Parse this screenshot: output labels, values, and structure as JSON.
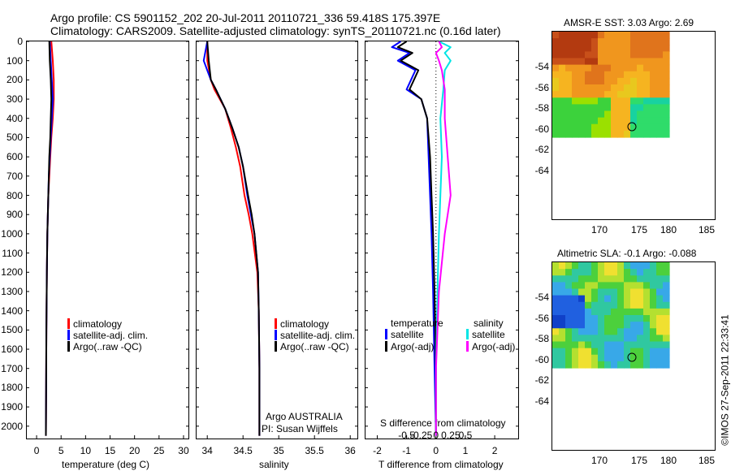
{
  "header": {
    "line1": "Argo profile: CS 5901152_202 20-Jul-2011 20110721_336 59.418S 175.397E",
    "line2": "Climatology: CARS2009. Satellite-adjusted climatology: synTS_20110721.nc (0.16d later)"
  },
  "credit": "©IMOS 27-Sep-2011 22:33:41",
  "colors": {
    "clim": "#ff0000",
    "sat": "#0000ff",
    "argo": "#000000",
    "sat_s": "#00e5e5",
    "argo_s": "#ff00ff"
  },
  "depth_ticks": [
    "0",
    "100",
    "200",
    "300",
    "400",
    "500",
    "600",
    "700",
    "800",
    "900",
    "1000",
    "1100",
    "1200",
    "1300",
    "1400",
    "1500",
    "1600",
    "1700",
    "1800",
    "1900",
    "2000"
  ],
  "panel_temp": {
    "xlabel": "temperature (deg C)",
    "xticks": [
      "0",
      "5",
      "10",
      "15",
      "20",
      "25",
      "30"
    ],
    "legend": [
      "climatology",
      "satellite-adj. clim.",
      "Argo(..raw -QC)"
    ]
  },
  "panel_sal": {
    "xlabel": "salinity",
    "xticks": [
      "34",
      "34.5",
      "35",
      "35.5",
      "36"
    ],
    "legend": [
      "climatology",
      "satellite-adj. clim.",
      "Argo(..raw -QC)"
    ],
    "note1": "Argo AUSTRALIA",
    "note2": "PI: Susan Wijffels"
  },
  "panel_diff": {
    "xlabel": "T difference from climatology",
    "xticks": [
      "-2",
      "-1",
      "0",
      "1",
      "2"
    ],
    "top_label": "S difference from climatology",
    "top_ticks": [
      "-0.5",
      "-0.25",
      "0",
      "0.25",
      "0.5"
    ],
    "legend_t_title": "temperature",
    "legend_s_title": "salinity",
    "legend_t": [
      "satellite",
      "Argo(-adj)"
    ],
    "legend_s": [
      "satellite",
      "Argo(-adj)"
    ]
  },
  "map_sst": {
    "title": "AMSR-E SST: 3.03 Argo: 2.69",
    "yticks": [
      "-54",
      "-56",
      "-58",
      "-60",
      "-62",
      "-64"
    ],
    "xticks": [
      "170",
      "175",
      "180",
      "185"
    ]
  },
  "map_sla": {
    "title": "Altimetric SLA: -0.1 Argo: -0.088",
    "yticks": [
      "-54",
      "-56",
      "-58",
      "-60",
      "-62",
      "-64"
    ],
    "xticks": [
      "170",
      "175",
      "180",
      "185"
    ]
  },
  "chart_data": [
    {
      "type": "line",
      "xlabel": "temperature (deg C)",
      "ylabel": "",
      "xlim": [
        -2,
        31
      ],
      "ylim": [
        2060,
        0
      ],
      "series": [
        {
          "name": "climatology",
          "x": [
            3.0,
            3.3,
            3.5,
            3.5,
            3.3,
            3.0,
            2.8,
            2.6,
            2.4,
            2.3,
            2.2,
            2.1,
            2.0,
            1.95,
            1.9
          ],
          "y": [
            0,
            100,
            200,
            300,
            400,
            500,
            600,
            700,
            800,
            900,
            1000,
            1200,
            1500,
            1800,
            2050
          ]
        },
        {
          "name": "satellite-adj. clim.",
          "x": [
            2.7,
            2.9,
            3.1,
            3.3,
            3.1,
            2.9,
            2.7,
            2.5,
            2.4,
            2.3,
            2.2,
            2.1,
            2.0,
            1.95,
            1.9
          ],
          "y": [
            0,
            100,
            200,
            300,
            400,
            500,
            600,
            700,
            800,
            900,
            1000,
            1200,
            1500,
            1800,
            2050
          ]
        },
        {
          "name": "Argo(..raw -QC)",
          "x": [
            2.6,
            2.7,
            2.9,
            3.0,
            2.9,
            2.8,
            2.6,
            2.5,
            2.4,
            2.3,
            2.2,
            2.1,
            2.0,
            1.95,
            1.9
          ],
          "y": [
            0,
            100,
            200,
            300,
            400,
            500,
            600,
            700,
            800,
            900,
            1000,
            1200,
            1500,
            1800,
            2050
          ]
        }
      ]
    },
    {
      "type": "line",
      "xlabel": "salinity",
      "ylabel": "",
      "xlim": [
        33.85,
        36.1
      ],
      "ylim": [
        2060,
        0
      ],
      "series": [
        {
          "name": "climatology",
          "x": [
            34.0,
            34.0,
            34.05,
            34.1,
            34.25,
            34.33,
            34.4,
            34.46,
            34.52,
            34.58,
            34.63,
            34.7,
            34.72,
            34.73,
            34.73
          ],
          "y": [
            0,
            100,
            200,
            250,
            350,
            450,
            550,
            650,
            800,
            900,
            1000,
            1200,
            1400,
            1700,
            2050
          ]
        },
        {
          "name": "satellite-adj. clim.",
          "x": [
            34.0,
            33.95,
            34.05,
            34.12,
            34.25,
            34.35,
            34.44,
            34.5,
            34.56,
            34.61,
            34.66,
            34.71,
            34.72,
            34.73,
            34.73
          ],
          "y": [
            0,
            100,
            200,
            250,
            350,
            450,
            550,
            650,
            800,
            900,
            1000,
            1200,
            1400,
            1700,
            2050
          ]
        },
        {
          "name": "Argo(..raw -QC)",
          "x": [
            34.0,
            34.02,
            34.05,
            34.12,
            34.25,
            34.35,
            34.44,
            34.5,
            34.57,
            34.62,
            34.66,
            34.71,
            34.72,
            34.73,
            34.73
          ],
          "y": [
            0,
            100,
            200,
            250,
            350,
            450,
            550,
            650,
            800,
            900,
            1000,
            1200,
            1400,
            1700,
            2050
          ]
        }
      ]
    },
    {
      "type": "line",
      "xlabel": "T difference from climatology",
      "ylabel": "",
      "xlim": [
        -2.4,
        2.8
      ],
      "ylim": [
        2060,
        0
      ],
      "series": [
        {
          "name": "temperature satellite",
          "x": [
            -1.2,
            -1.5,
            -0.9,
            -1.3,
            -0.7,
            -1.0,
            -0.5,
            -0.3,
            -0.25,
            -0.2,
            -0.15,
            -0.1,
            -0.05,
            0.0
          ],
          "y": [
            0,
            30,
            60,
            100,
            150,
            250,
            300,
            400,
            600,
            800,
            1000,
            1300,
            1700,
            2050
          ]
        },
        {
          "name": "temperature Argo(-adj)",
          "x": [
            -1.0,
            -1.3,
            -0.8,
            -1.2,
            -0.6,
            -0.9,
            -0.5,
            -0.3,
            -0.2,
            -0.15,
            -0.1,
            -0.05,
            0.0,
            0.0
          ],
          "y": [
            0,
            30,
            60,
            100,
            150,
            250,
            300,
            400,
            600,
            800,
            1000,
            1300,
            1700,
            2050
          ]
        },
        {
          "name": "salinity satellite",
          "x": [
            0.1,
            0.5,
            0.3,
            0.5,
            0.3,
            0.25,
            0.15,
            0.2,
            0.15,
            0.1,
            0.05,
            0.0,
            0.0
          ],
          "y": [
            0,
            30,
            60,
            100,
            150,
            250,
            400,
            600,
            800,
            1000,
            1300,
            1700,
            2050
          ]
        },
        {
          "name": "salinity Argo(-adj)",
          "x": [
            0.1,
            0.2,
            0.0,
            0.1,
            0.2,
            0.3,
            0.3,
            0.4,
            0.5,
            0.3,
            0.1,
            0.0,
            0.0
          ],
          "y": [
            0,
            30,
            60,
            100,
            150,
            250,
            400,
            600,
            800,
            1000,
            1300,
            1700,
            2050
          ]
        }
      ]
    }
  ]
}
